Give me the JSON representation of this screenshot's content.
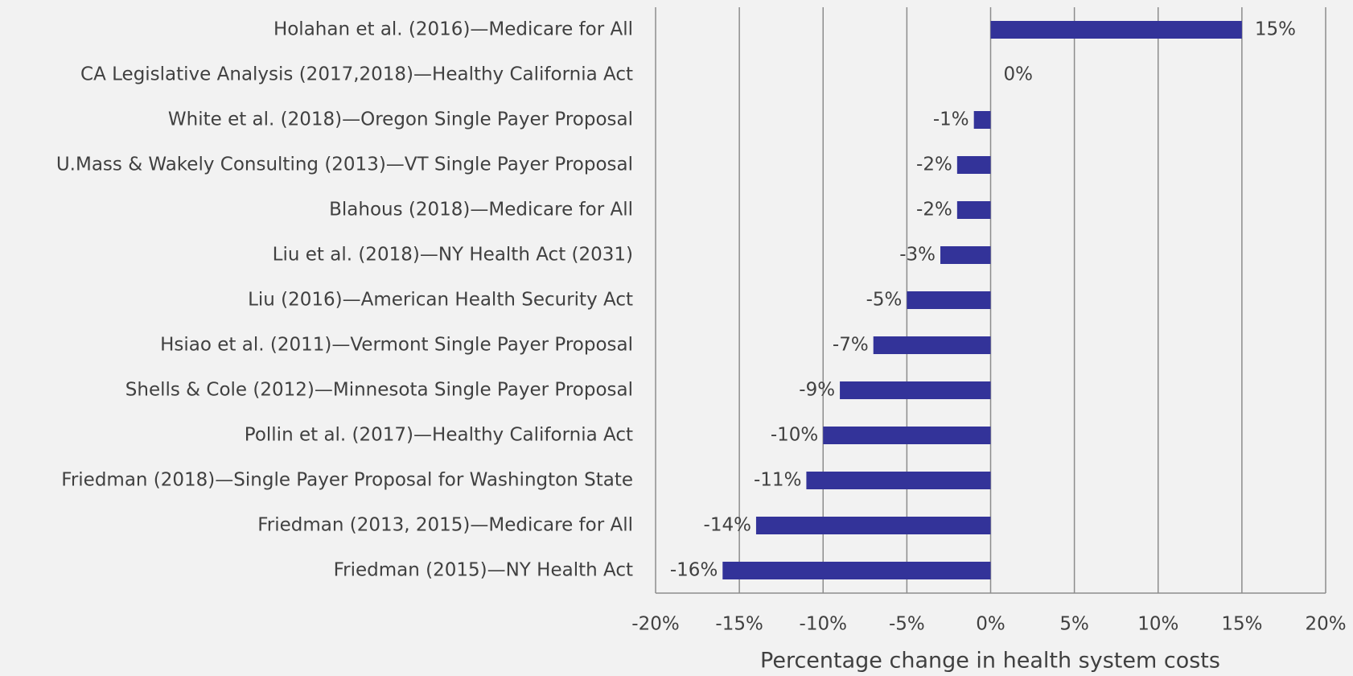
{
  "chart_data": {
    "type": "hbar",
    "categories": [
      "Holahan et al. (2016)—Medicare for All",
      "CA Legislative Analysis (2017,2018)—Healthy California Act",
      "White et al. (2018)—Oregon Single Payer Proposal",
      "U.Mass & Wakely Consulting (2013)—VT Single Payer Proposal",
      "Blahous (2018)—Medicare for All",
      "Liu et al. (2018)—NY Health Act (2031)",
      "Liu (2016)—American Health Security Act",
      "Hsiao et al. (2011)—Vermont Single Payer Proposal",
      "Shells & Cole (2012)—Minnesota Single Payer Proposal",
      "Pollin et al. (2017)—Healthy California Act",
      "Friedman (2018)—Single Payer Proposal for Washington State",
      "Friedman (2013, 2015)—Medicare for All",
      "Friedman (2015)—NY Health Act"
    ],
    "values": [
      15,
      0,
      -1,
      -2,
      -2,
      -3,
      -5,
      -7,
      -9,
      -10,
      -11,
      -14,
      -16
    ],
    "value_labels": [
      "15%",
      "0%",
      "-1%",
      "-2%",
      "-2%",
      "-3%",
      "-5%",
      "-7%",
      "-9%",
      "-10%",
      "-11%",
      "-14%",
      "-16%"
    ],
    "color": "#333399",
    "xlabel": "Percentage change in health system costs",
    "xlim": [
      -20,
      20
    ],
    "xticks": [
      {
        "value": -20,
        "label": "-20%"
      },
      {
        "value": -15,
        "label": "-15%"
      },
      {
        "value": -10,
        "label": "-10%"
      },
      {
        "value": -5,
        "label": "-5%"
      },
      {
        "value": 0,
        "label": "0%"
      },
      {
        "value": 5,
        "label": "5%"
      },
      {
        "value": 10,
        "label": "10%"
      },
      {
        "value": 15,
        "label": "15%"
      },
      {
        "value": 20,
        "label": "20%"
      }
    ],
    "grid": true
  }
}
